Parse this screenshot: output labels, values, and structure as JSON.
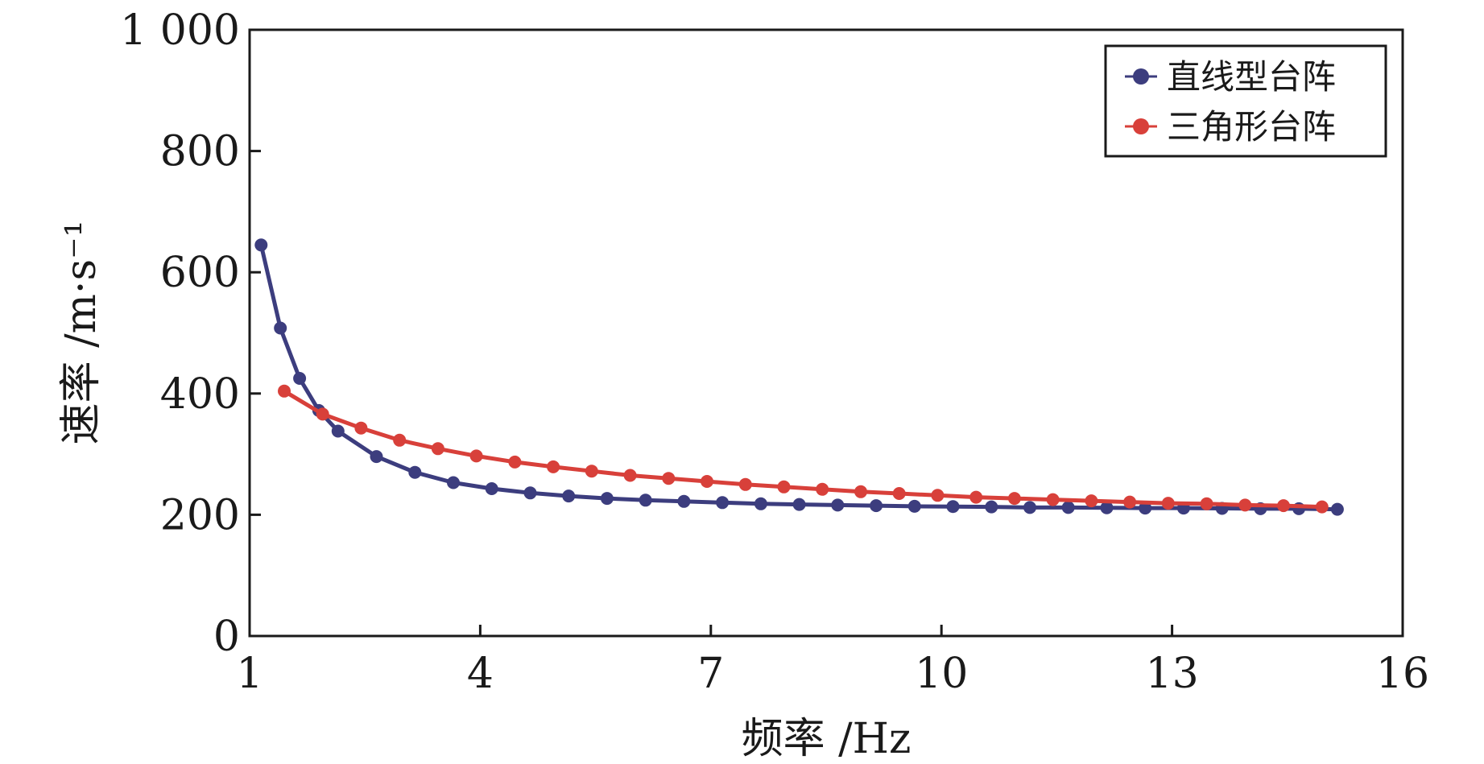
{
  "chart_data": {
    "type": "line",
    "xlabel": "频率 /Hz",
    "ylabel": "速率 /m·s⁻¹",
    "xlim": [
      1,
      16
    ],
    "ylim": [
      0,
      1000
    ],
    "xticks": [
      1,
      4,
      7,
      10,
      13,
      16
    ],
    "yticks": [
      0,
      200,
      400,
      600,
      800,
      1000
    ],
    "xtick_labels": [
      "1",
      "4",
      "7",
      "10",
      "13",
      "16"
    ],
    "ytick_labels": [
      "0",
      "200",
      "400",
      "600",
      "800",
      "1 000"
    ],
    "grid": false,
    "legend": "top-right",
    "series": [
      {
        "name": "直线型台阵",
        "color": "#3c3d7e",
        "x": [
          1.15,
          1.4,
          1.65,
          1.9,
          2.15,
          2.65,
          3.15,
          3.65,
          4.15,
          4.65,
          5.15,
          5.65,
          6.15,
          6.65,
          7.15,
          7.65,
          8.15,
          8.65,
          9.15,
          9.65,
          10.15,
          10.65,
          11.15,
          11.65,
          12.15,
          12.65,
          13.15,
          13.65,
          14.15,
          14.65,
          15.15
        ],
        "y": [
          645,
          508,
          425,
          372,
          338,
          296,
          270,
          253,
          243,
          236,
          231,
          227,
          224,
          222,
          220,
          218,
          217,
          216,
          215,
          214,
          213.5,
          213,
          212,
          212,
          211.5,
          211,
          211,
          210.5,
          210,
          210,
          209
        ]
      },
      {
        "name": "三角形台阵",
        "color": "#d8403a",
        "x": [
          1.45,
          1.95,
          2.45,
          2.95,
          3.45,
          3.95,
          4.45,
          4.95,
          5.45,
          5.95,
          6.45,
          6.95,
          7.45,
          7.95,
          8.45,
          8.95,
          9.45,
          9.95,
          10.45,
          10.95,
          11.45,
          11.95,
          12.45,
          12.95,
          13.45,
          13.95,
          14.45,
          14.95
        ],
        "y": [
          404,
          366,
          343,
          323,
          309,
          297,
          287,
          279,
          272,
          265,
          260,
          255,
          250,
          246,
          242,
          238,
          235,
          232,
          229,
          227,
          225,
          223,
          221,
          219,
          218,
          216,
          215,
          213
        ]
      }
    ]
  }
}
